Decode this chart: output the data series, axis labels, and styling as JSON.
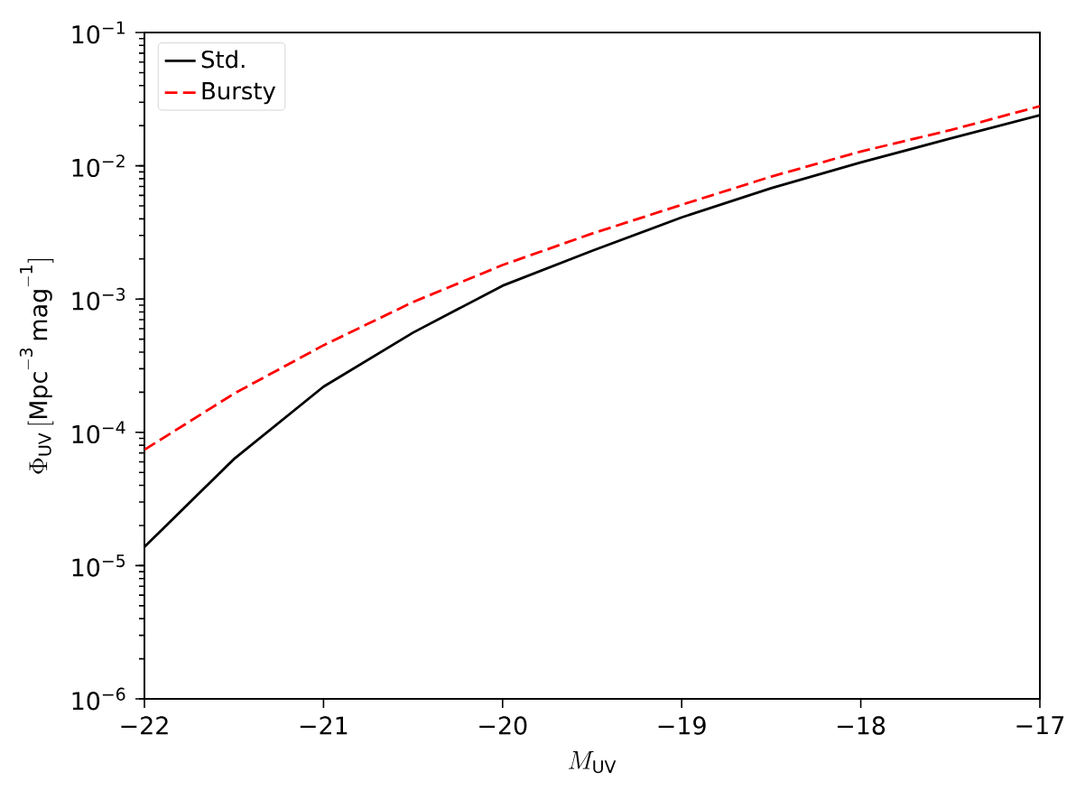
{
  "chart_data": {
    "type": "line",
    "xlabel": "M_{\\rm UV}",
    "ylabel": "\\Phi_{\\rm UV}\\,[{\\rm Mpc^{-3}\\,mag^{-1}}]",
    "x": [
      -22,
      -21.5,
      -21,
      -20.5,
      -20,
      -19.5,
      -19,
      -18.5,
      -18,
      -17.5,
      -17
    ],
    "series": [
      {
        "name": "Std.",
        "color": "#000000",
        "line_style": "solid",
        "values": [
          1.38e-05,
          6.3e-05,
          0.00022,
          0.00056,
          0.00126,
          0.0023,
          0.0041,
          0.0068,
          0.0106,
          0.016,
          0.024
        ]
      },
      {
        "name": "Bursty",
        "color": "#ff0000",
        "line_style": "dashed",
        "values": [
          7.4e-05,
          0.000195,
          0.00045,
          0.00095,
          0.0018,
          0.0031,
          0.0051,
          0.0083,
          0.0128,
          0.0185,
          0.028
        ]
      }
    ],
    "xlim": [
      -22,
      -17
    ],
    "xticks": [
      {
        "value": -22,
        "label": "−22"
      },
      {
        "value": -21,
        "label": "−21"
      },
      {
        "value": -20,
        "label": "−20"
      },
      {
        "value": -19,
        "label": "−19"
      },
      {
        "value": -18,
        "label": "−18"
      },
      {
        "value": -17,
        "label": "−17"
      }
    ],
    "ylim": [
      1e-06,
      0.1
    ],
    "yticks": [
      {
        "value": 1e-06,
        "label": "10$^{−6}$"
      },
      {
        "value": 1e-05,
        "label": "10$^{−5}$"
      },
      {
        "value": 0.0001,
        "label": "10$^{−4}$"
      },
      {
        "value": 0.001,
        "label": "10$^{−3}$"
      },
      {
        "value": 0.01,
        "label": "10$^{−2}$"
      },
      {
        "value": 0.1,
        "label": "10$^{−1}$"
      }
    ],
    "log": "y",
    "legend": "top left",
    "grid": false,
    "marker": "none"
  }
}
